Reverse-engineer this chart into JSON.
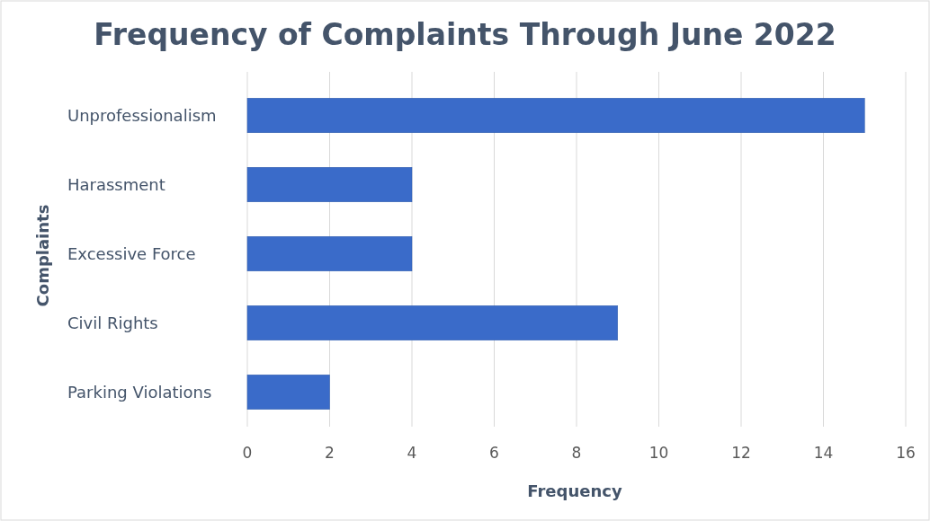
{
  "chart_data": {
    "type": "bar",
    "orientation": "horizontal",
    "title": "Frequency of Complaints Through June 2022",
    "xlabel": "Frequency",
    "ylabel": "Complaints",
    "categories": [
      "Unprofessionalism",
      "Harassment",
      "Excessive Force",
      "Civil Rights",
      "Parking Violations"
    ],
    "values": [
      15,
      4,
      4,
      9,
      2
    ],
    "color": "#3a6bc9",
    "xlim": [
      0,
      16
    ],
    "xticks": [
      0,
      2,
      4,
      6,
      8,
      10,
      12,
      14,
      16
    ],
    "grid": "x"
  }
}
